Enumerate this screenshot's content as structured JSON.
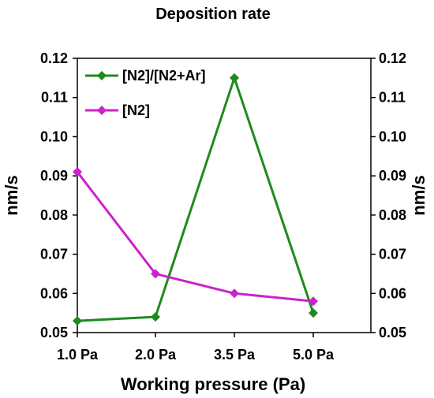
{
  "chart_data": {
    "type": "line",
    "title": "Deposition rate",
    "xlabel": "Working pressure (Pa)",
    "ylabel_left": "nm/s",
    "ylabel_right": "nm/s",
    "categories": [
      "1.0 Pa",
      "2.0 Pa",
      "3.5 Pa",
      "5.0 Pa"
    ],
    "ylim": [
      0.05,
      0.12
    ],
    "yticks": [
      0.05,
      0.06,
      0.07,
      0.08,
      0.09,
      0.1,
      0.11,
      0.12
    ],
    "ytick_labels": [
      "0.05",
      "0.06",
      "0.07",
      "0.08",
      "0.09",
      "0.10",
      "0.11",
      "0.12"
    ],
    "grid": false,
    "legend_position": "top-left",
    "series": [
      {
        "name": "[N2]/[N2+Ar]",
        "color": "#1f8a1f",
        "marker": "diamond",
        "values": [
          0.053,
          0.054,
          0.115,
          0.055
        ]
      },
      {
        "name": "[N2]",
        "color": "#cc22cc",
        "marker": "diamond",
        "values": [
          0.091,
          0.065,
          0.06,
          0.058
        ]
      }
    ]
  }
}
